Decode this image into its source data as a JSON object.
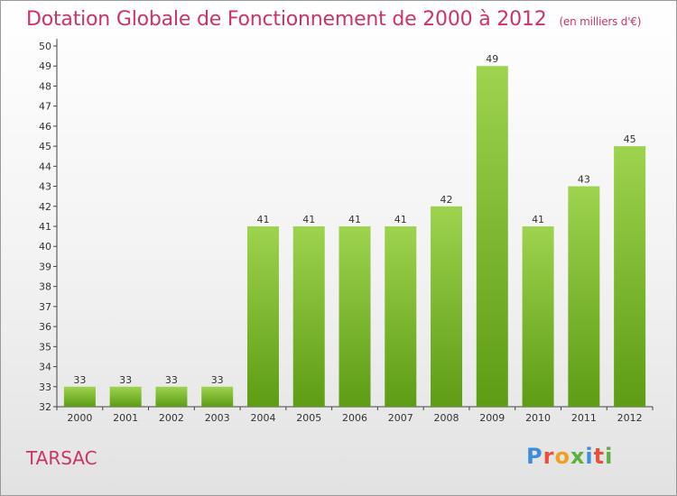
{
  "chart_data": {
    "type": "bar",
    "title": "Dotation Globale de Fonctionnement de 2000 à 2012",
    "unit_note": "(en milliers d'€)",
    "categories": [
      "2000",
      "2001",
      "2002",
      "2003",
      "2004",
      "2005",
      "2006",
      "2007",
      "2008",
      "2009",
      "2010",
      "2011",
      "2012"
    ],
    "values": [
      33,
      33,
      33,
      33,
      41,
      41,
      41,
      41,
      42,
      49,
      41,
      43,
      45
    ],
    "ylim": [
      32,
      50
    ],
    "ytick_step": 1,
    "grid": false,
    "colors": {
      "bar_top": "#9ed34e",
      "bar_bottom": "#5d9c14",
      "axis": "#444444",
      "tick_text": "#333333",
      "title": "#cc3366"
    }
  },
  "commune": "TARSAC",
  "logo": {
    "letters": [
      "P",
      "r",
      "o",
      "x",
      "i",
      "t",
      "i"
    ],
    "colors": [
      "#3b8fd9",
      "#e8503a",
      "#f0a020",
      "#58b33a",
      "#3b8fd9",
      "#e8503a",
      "#58b33a"
    ]
  }
}
